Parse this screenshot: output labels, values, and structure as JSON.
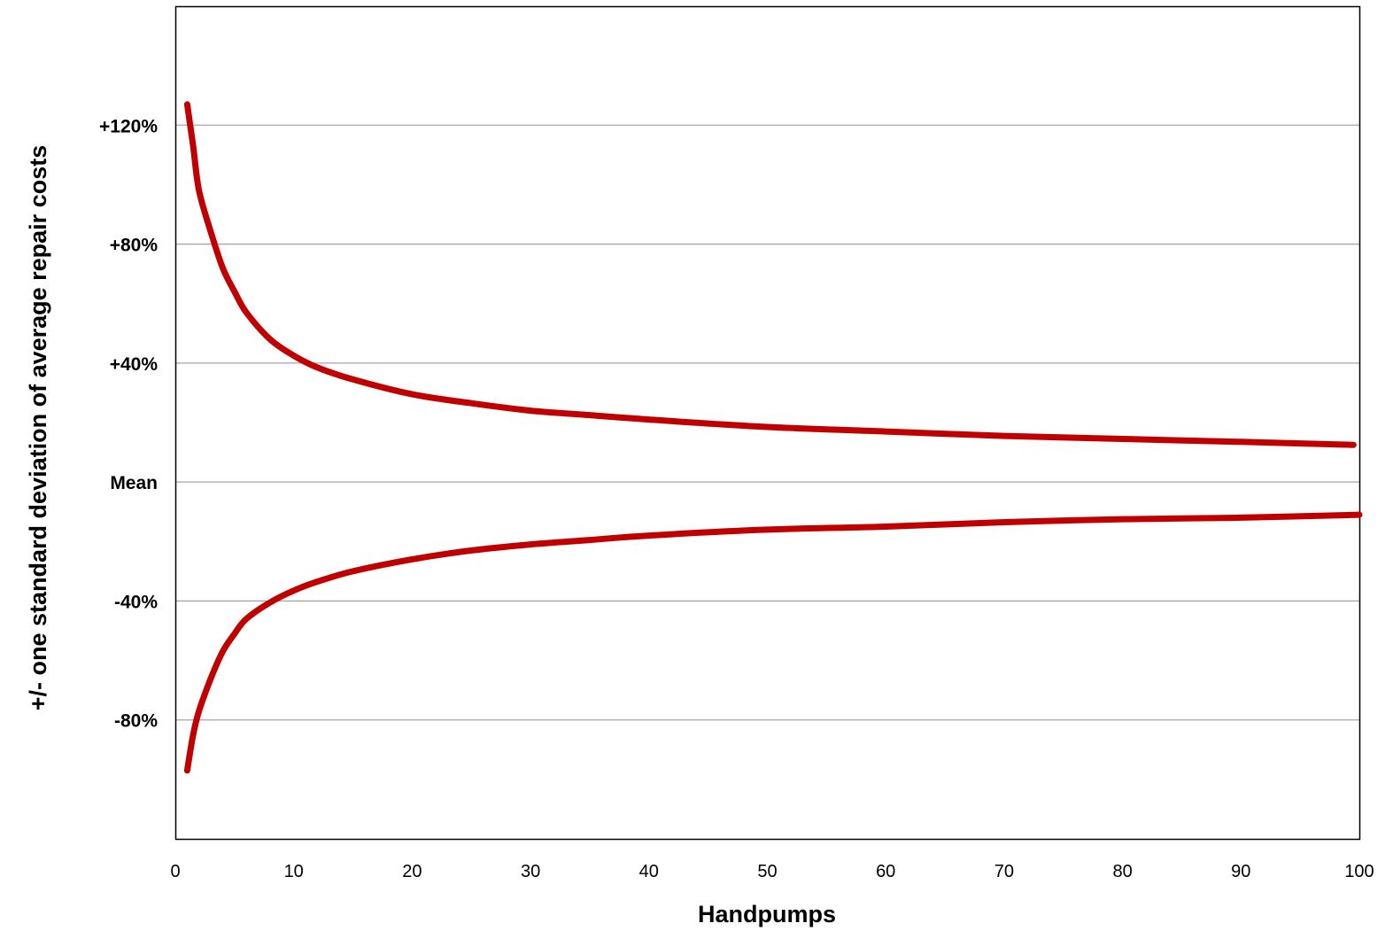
{
  "chart_data": {
    "type": "line",
    "xlabel": "Handpumps",
    "ylabel": "+/- one standard deviation of average repair costs",
    "xlim": [
      0,
      100
    ],
    "ylim": [
      -120,
      160
    ],
    "grid": true,
    "legend": "none",
    "x_ticks": [
      "0",
      "10",
      "20",
      "30",
      "40",
      "50",
      "60",
      "70",
      "80",
      "90",
      "100"
    ],
    "y_ticks": [
      {
        "value": 120,
        "label": "+120%"
      },
      {
        "value": 80,
        "label": "+80%"
      },
      {
        "value": 40,
        "label": "+40%"
      },
      {
        "value": 0,
        "label": "Mean"
      },
      {
        "value": -40,
        "label": "-40%"
      },
      {
        "value": -80,
        "label": "-80%"
      }
    ],
    "series": [
      {
        "color": "#c00000",
        "points": [
          [
            1,
            127
          ],
          [
            1.5,
            113
          ],
          [
            2,
            98
          ],
          [
            3,
            84
          ],
          [
            4,
            72
          ],
          [
            5,
            64
          ],
          [
            6,
            57
          ],
          [
            8,
            48
          ],
          [
            10,
            42.5
          ],
          [
            12,
            38.5
          ],
          [
            15,
            34.5
          ],
          [
            20,
            29.5
          ],
          [
            25,
            26.5
          ],
          [
            30,
            24
          ],
          [
            35,
            22.5
          ],
          [
            40,
            21
          ],
          [
            50,
            18.5
          ],
          [
            60,
            17
          ],
          [
            70,
            15.5
          ],
          [
            80,
            14.5
          ],
          [
            90,
            13.5
          ],
          [
            99.5,
            12.5
          ]
        ]
      },
      {
        "color": "#c00000",
        "points": [
          [
            1,
            -97
          ],
          [
            1.5,
            -85
          ],
          [
            2,
            -77
          ],
          [
            3,
            -66
          ],
          [
            4,
            -57
          ],
          [
            5,
            -51
          ],
          [
            6,
            -46
          ],
          [
            8,
            -40.5
          ],
          [
            10,
            -36.5
          ],
          [
            12,
            -33.5
          ],
          [
            15,
            -30
          ],
          [
            20,
            -26
          ],
          [
            25,
            -23
          ],
          [
            30,
            -21
          ],
          [
            35,
            -19.5
          ],
          [
            40,
            -18
          ],
          [
            50,
            -16
          ],
          [
            60,
            -15
          ],
          [
            70,
            -13.5
          ],
          [
            80,
            -12.5
          ],
          [
            90,
            -12
          ],
          [
            100,
            -11
          ]
        ]
      }
    ]
  }
}
